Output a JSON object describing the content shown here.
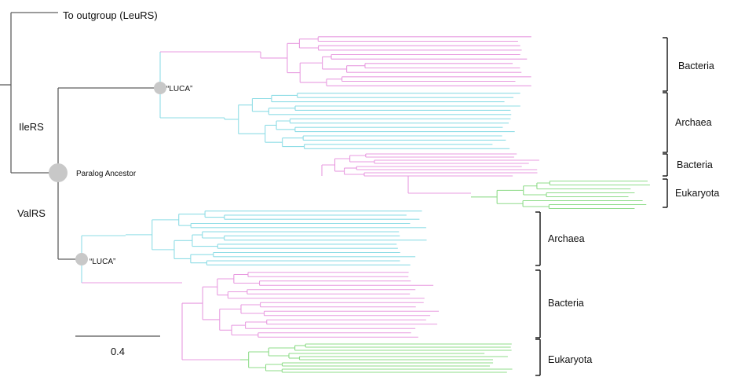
{
  "labels": {
    "outgroup": "To outgroup (LeuRS)",
    "ileRS": "IleRS",
    "valRS": "ValRS",
    "paralog_ancestor": "Paralog Ancestor",
    "luca_ile": "“LUCA”",
    "luca_val": "“LUCA”",
    "scale": "0.4"
  },
  "clades": [
    {
      "name": "Bacteria"
    },
    {
      "name": "Archaea"
    },
    {
      "name": "Bacteria"
    },
    {
      "name": "Eukaryota"
    },
    {
      "name": "Archaea"
    },
    {
      "name": "Bacteria"
    },
    {
      "name": "Eukaryota"
    }
  ],
  "colors": {
    "bacteria": "#e89be0",
    "archaea": "#8fdde6",
    "eukaryota": "#8fdc8a",
    "trunk": "#5f5f5f",
    "node": "#c8c8c8",
    "text": "#111111"
  },
  "scale_bar": {
    "value": 0.4
  }
}
